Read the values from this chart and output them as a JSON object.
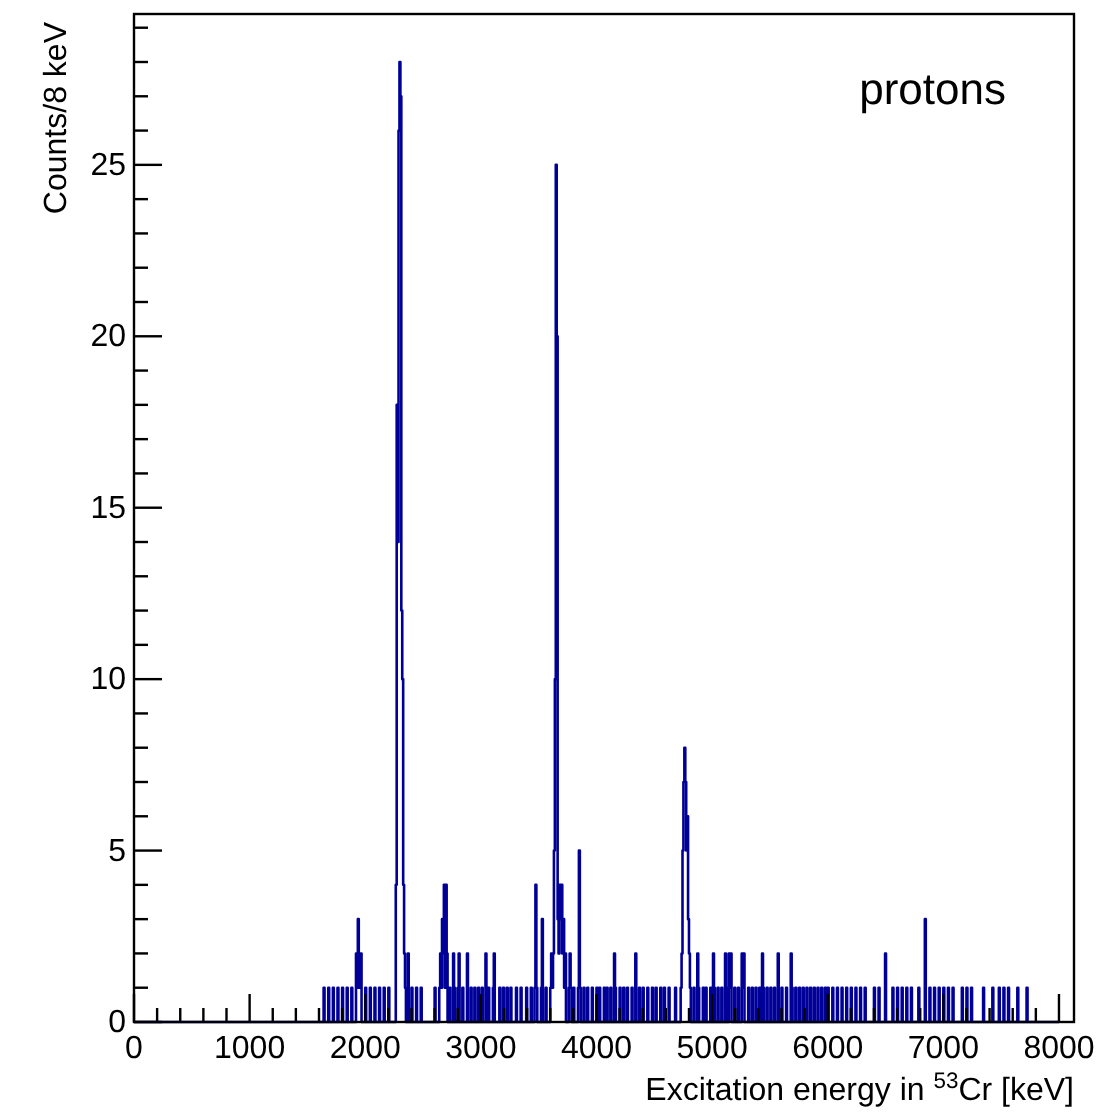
{
  "chart_data": {
    "type": "histogram",
    "xlabel": "Excitation energy in $^{53}$Cr [keV]",
    "ylabel": "Counts/8 keV",
    "annotations": [
      "protons"
    ],
    "color": "#000099",
    "xlim": [
      0,
      8130
    ],
    "ylim": [
      0,
      29.4
    ],
    "xticks": [
      0,
      {
        "value": 200,
        "label": null
      },
      {
        "value": 400,
        "label": null
      },
      {
        "value": 600,
        "label": null
      },
      {
        "value": 800,
        "label": null
      },
      1000,
      {
        "value": 1200,
        "label": null
      },
      {
        "value": 1400,
        "label": null
      },
      {
        "value": 1600,
        "label": null
      },
      {
        "value": 1800,
        "label": null
      },
      2000,
      {
        "value": 2200,
        "label": null
      },
      {
        "value": 2400,
        "label": null
      },
      {
        "value": 2600,
        "label": null
      },
      {
        "value": 2800,
        "label": null
      },
      3000,
      {
        "value": 3200,
        "label": null
      },
      {
        "value": 3400,
        "label": null
      },
      {
        "value": 3600,
        "label": null
      },
      {
        "value": 3800,
        "label": null
      },
      4000,
      {
        "value": 4200,
        "label": null
      },
      {
        "value": 4400,
        "label": null
      },
      {
        "value": 4600,
        "label": null
      },
      {
        "value": 4800,
        "label": null
      },
      5000,
      {
        "value": 5200,
        "label": null
      },
      {
        "value": 5400,
        "label": null
      },
      {
        "value": 5600,
        "label": null
      },
      {
        "value": 5800,
        "label": null
      },
      6000,
      {
        "value": 6200,
        "label": null
      },
      {
        "value": 6400,
        "label": null
      },
      {
        "value": 6600,
        "label": null
      },
      {
        "value": 6800,
        "label": null
      },
      7000,
      {
        "value": 7200,
        "label": null
      },
      {
        "value": 7400,
        "label": null
      },
      {
        "value": 7600,
        "label": null
      },
      {
        "value": 7800,
        "label": null
      },
      8000
    ],
    "yticks": [
      0,
      {
        "value": 1,
        "label": null
      },
      {
        "value": 2,
        "label": null
      },
      {
        "value": 3,
        "label": null
      },
      {
        "value": 4,
        "label": null
      },
      5,
      {
        "value": 6,
        "label": null
      },
      {
        "value": 7,
        "label": null
      },
      {
        "value": 8,
        "label": null
      },
      {
        "value": 9,
        "label": null
      },
      10,
      {
        "value": 11,
        "label": null
      },
      {
        "value": 12,
        "label": null
      },
      {
        "value": 13,
        "label": null
      },
      {
        "value": 14,
        "label": null
      },
      15,
      {
        "value": 16,
        "label": null
      },
      {
        "value": 17,
        "label": null
      },
      {
        "value": 18,
        "label": null
      },
      {
        "value": 19,
        "label": null
      },
      20,
      {
        "value": 21,
        "label": null
      },
      {
        "value": 22,
        "label": null
      },
      {
        "value": 23,
        "label": null
      },
      {
        "value": 24,
        "label": null
      },
      25,
      {
        "value": 26,
        "label": null
      },
      {
        "value": 27,
        "label": null
      },
      {
        "value": 28,
        "label": null
      },
      {
        "value": 29,
        "label": null
      }
    ],
    "bins": [
      0,
      1640,
      1648,
      1680,
      1688,
      1720,
      1728,
      1760,
      1768,
      1800,
      1808,
      1840,
      1848,
      1880,
      1888,
      1920,
      1928,
      1936,
      1944,
      1952,
      1960,
      1968,
      2000,
      2008,
      2040,
      2048,
      2080,
      2088,
      2120,
      2128,
      2160,
      2168,
      2200,
      2208,
      2264,
      2272,
      2280,
      2288,
      2296,
      2304,
      2312,
      2320,
      2328,
      2336,
      2344,
      2352,
      2368,
      2376,
      2400,
      2408,
      2440,
      2448,
      2480,
      2488,
      2600,
      2608,
      2640,
      2648,
      2656,
      2664,
      2672,
      2680,
      2688,
      2696,
      2704,
      2712,
      2728,
      2736,
      2760,
      2768,
      2776,
      2800,
      2808,
      2816,
      2840,
      2848,
      2880,
      2888,
      2912,
      2920,
      2944,
      2952,
      2976,
      2984,
      3008,
      3016,
      3040,
      3048,
      3064,
      3072,
      3104,
      3112,
      3120,
      3160,
      3168,
      3192,
      3200,
      3224,
      3232,
      3256,
      3264,
      3304,
      3312,
      3344,
      3352,
      3392,
      3400,
      3432,
      3440,
      3464,
      3472,
      3480,
      3488,
      3520,
      3528,
      3536,
      3560,
      3568,
      3600,
      3608,
      3616,
      3624,
      3632,
      3640,
      3648,
      3656,
      3664,
      3672,
      3680,
      3688,
      3696,
      3704,
      3712,
      3720,
      3728,
      3736,
      3760,
      3768,
      3776,
      3784,
      3800,
      3808,
      3840,
      3848,
      3856,
      3864,
      3888,
      3896,
      3920,
      3928,
      3960,
      3968,
      4000,
      4008,
      4024,
      4032,
      4064,
      4072,
      4088,
      4096,
      4120,
      4128,
      4152,
      4160,
      4168,
      4200,
      4208,
      4232,
      4240,
      4264,
      4272,
      4304,
      4312,
      4336,
      4344,
      4368,
      4376,
      4400,
      4408,
      4440,
      4448,
      4480,
      4488,
      4512,
      4520,
      4552,
      4560,
      4584,
      4592,
      4624,
      4632,
      4680,
      4688,
      4728,
      4736,
      4744,
      4752,
      4760,
      4768,
      4776,
      4784,
      4792,
      4800,
      4808,
      4816,
      4840,
      4848,
      4872,
      4880,
      4888,
      4920,
      4928,
      4944,
      4952,
      4984,
      4992,
      5008,
      5016,
      5024,
      5048,
      5056,
      5080,
      5088,
      5112,
      5120,
      5128,
      5144,
      5152,
      5160,
      5168,
      5192,
      5200,
      5224,
      5232,
      5256,
      5264,
      5272,
      5280,
      5312,
      5320,
      5344,
      5352,
      5376,
      5384,
      5408,
      5416,
      5432,
      5440,
      5448,
      5472,
      5480,
      5504,
      5512,
      5536,
      5544,
      5568,
      5576,
      5600,
      5608,
      5640,
      5648,
      5680,
      5688,
      5696,
      5720,
      5728,
      5752,
      5760,
      5784,
      5792,
      5816,
      5824,
      5848,
      5856,
      5880,
      5888,
      5912,
      5920,
      5944,
      5952,
      5976,
      5984,
      6000,
      6008,
      6040,
      6048,
      6080,
      6088,
      6120,
      6128,
      6160,
      6168,
      6200,
      6208,
      6240,
      6248,
      6280,
      6288,
      6320,
      6328,
      6400,
      6408,
      6440,
      6448,
      6496,
      6504,
      6560,
      6568,
      6600,
      6608,
      6640,
      6648,
      6680,
      6688,
      6720,
      6728,
      6784,
      6792,
      6840,
      6848,
      6880,
      6888,
      6920,
      6928,
      6960,
      6968,
      7000,
      7008,
      7040,
      7048,
      7080,
      7088,
      7160,
      7168,
      7200,
      7208,
      7240,
      7248,
      7344,
      7352,
      7424,
      7432,
      7480,
      7488,
      7520,
      7528,
      7560,
      7568,
      7640,
      7648,
      7720,
      7728,
      8000
    ],
    "values": [
      0,
      1,
      0,
      1,
      0,
      1,
      0,
      1,
      0,
      1,
      0,
      1,
      0,
      1,
      0,
      2,
      1,
      3,
      2,
      1,
      2,
      0,
      1,
      0,
      1,
      0,
      1,
      0,
      1,
      0,
      1,
      0,
      1,
      0,
      4,
      18,
      14,
      26,
      28,
      27,
      12,
      10,
      4,
      2,
      1,
      0,
      2,
      0,
      1,
      0,
      1,
      0,
      1,
      0,
      1,
      0,
      1,
      2,
      1,
      3,
      2,
      4,
      1,
      4,
      2,
      0,
      1,
      0,
      2,
      1,
      0,
      1,
      2,
      0,
      1,
      0,
      2,
      0,
      1,
      0,
      1,
      0,
      1,
      0,
      1,
      0,
      2,
      0,
      1,
      0,
      1,
      2,
      0,
      1,
      0,
      1,
      0,
      1,
      0,
      1,
      0,
      1,
      0,
      1,
      0,
      1,
      0,
      1,
      0,
      1,
      4,
      1,
      0,
      1,
      3,
      0,
      1,
      0,
      1,
      2,
      1,
      2,
      5,
      10,
      25,
      20,
      3,
      2,
      4,
      3,
      4,
      2,
      3,
      1,
      2,
      0,
      1,
      2,
      1,
      0,
      1,
      0,
      1,
      5,
      1,
      0,
      1,
      0,
      1,
      0,
      1,
      0,
      1,
      0,
      1,
      0,
      1,
      0,
      1,
      0,
      1,
      0,
      2,
      1,
      0,
      1,
      0,
      1,
      0,
      1,
      0,
      1,
      0,
      2,
      0,
      1,
      0,
      1,
      0,
      1,
      0,
      1,
      0,
      1,
      0,
      1,
      0,
      1,
      0,
      1,
      0,
      1,
      0,
      1,
      2,
      5,
      7,
      8,
      7,
      5,
      6,
      3,
      2,
      1,
      0,
      1,
      0,
      2,
      1,
      0,
      1,
      0,
      1,
      0,
      1,
      0,
      2,
      1,
      0,
      1,
      0,
      1,
      0,
      2,
      1,
      0,
      2,
      1,
      2,
      0,
      1,
      0,
      1,
      0,
      2,
      1,
      2,
      0,
      1,
      0,
      1,
      0,
      1,
      0,
      1,
      0,
      2,
      1,
      0,
      1,
      0,
      1,
      0,
      1,
      0,
      2,
      0,
      1,
      0,
      1,
      0,
      2,
      1,
      0,
      1,
      0,
      1,
      0,
      1,
      0,
      1,
      0,
      1,
      0,
      1,
      0,
      1,
      0,
      1,
      0,
      1,
      0,
      1,
      0,
      1,
      0,
      1,
      0,
      1,
      0,
      1,
      0,
      1,
      0,
      1,
      0,
      1,
      0,
      1,
      0,
      1,
      0,
      1,
      0,
      2,
      0,
      1,
      0,
      1,
      0,
      1,
      0,
      1,
      0,
      1,
      0,
      1,
      0,
      3,
      0,
      1,
      0,
      1,
      0,
      1,
      0,
      1,
      0,
      1,
      0,
      1,
      0,
      1,
      0,
      1,
      0,
      1,
      0,
      1,
      0,
      1,
      0,
      1,
      0,
      1,
      0,
      1,
      0,
      1,
      0,
      1,
      0
    ]
  }
}
